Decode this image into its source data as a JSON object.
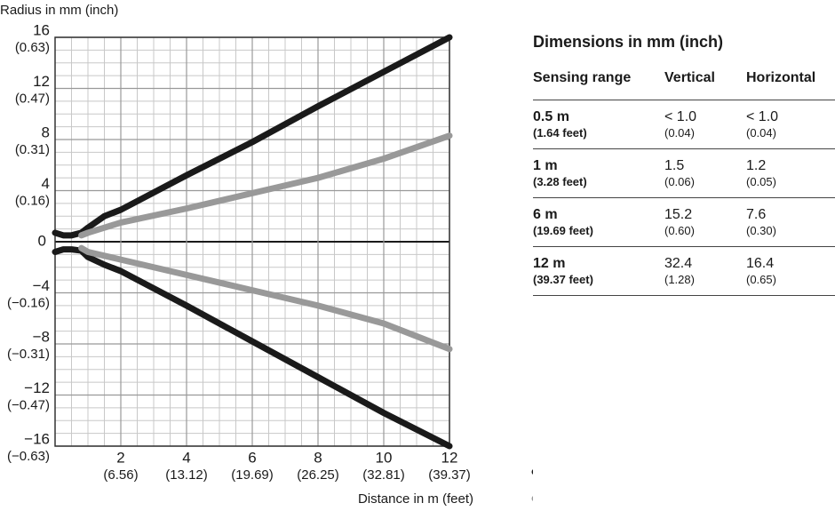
{
  "chart_data": {
    "type": "line",
    "y_label": "Radius in mm (inch)",
    "x_label": "Distance in m (feet)",
    "x": [
      0,
      0.25,
      0.5,
      0.8,
      1,
      1.5,
      2,
      4,
      6,
      8,
      10,
      12
    ],
    "series": [
      {
        "name": "Vertical",
        "color": "#1a1a1a",
        "values": [
          0.7,
          0.5,
          0.5,
          0.7,
          1.1,
          2,
          2.5,
          5.2,
          7.8,
          10.6,
          13.3,
          16
        ],
        "lower_values": [
          -0.8,
          -0.6,
          -0.6,
          -0.7,
          -1.2,
          -1.8,
          -2.3,
          -5,
          -7.8,
          -10.6,
          -13.4,
          -16
        ]
      },
      {
        "name": "Horizontal",
        "color": "#999999",
        "values": [
          null,
          null,
          null,
          0.5,
          0.7,
          1.1,
          1.5,
          2.6,
          3.8,
          5,
          6.5,
          8.3
        ],
        "lower_values": [
          null,
          null,
          null,
          -0.5,
          -0.8,
          -1.1,
          -1.4,
          -2.6,
          -3.8,
          -5,
          -6.4,
          -8.4
        ]
      }
    ],
    "xlim": [
      0,
      12
    ],
    "ylim": [
      -16,
      16
    ],
    "xticks": [
      2,
      4,
      6,
      8,
      10,
      12
    ],
    "xtick_sublabels": [
      "(6.56)",
      "(13.12)",
      "(19.69)",
      "(26.25)",
      "(32.81)",
      "(39.37)"
    ],
    "yticks": [
      {
        "value": -16,
        "label": "−16"
      },
      {
        "value": -12,
        "label": "−12"
      },
      {
        "value": -8,
        "label": "−8"
      },
      {
        "value": -4,
        "label": "−4"
      },
      0,
      4,
      8,
      12,
      16
    ],
    "ytick_sublabels": [
      "(−0.63)",
      "(−0.47)",
      "(−0.31)",
      "(−0.16)",
      null,
      "(0.16)",
      "(0.31)",
      "(0.47)",
      "(0.63)"
    ],
    "grid": true
  },
  "table": {
    "title": "Dimensions in mm (inch)",
    "header": [
      "Sensing range",
      "Vertical",
      "Horizontal"
    ],
    "rows": [
      [
        [
          "0.5 m",
          "(1.64 feet)"
        ],
        [
          "< 1.0",
          "(0.04)"
        ],
        [
          "< 1.0",
          "(0.04)"
        ]
      ],
      [
        [
          "1 m",
          "(3.28 feet)"
        ],
        [
          "1.5",
          "(0.06)"
        ],
        [
          "1.2",
          "(0.05)"
        ]
      ],
      [
        [
          "6 m",
          "(19.69 feet)"
        ],
        [
          "15.2",
          "(0.60)"
        ],
        [
          "7.6",
          "(0.30)"
        ]
      ],
      [
        [
          "12 m",
          "(39.37 feet)"
        ],
        [
          "32.4",
          "(1.28)"
        ],
        [
          "16.4",
          "(0.65)"
        ]
      ]
    ]
  }
}
